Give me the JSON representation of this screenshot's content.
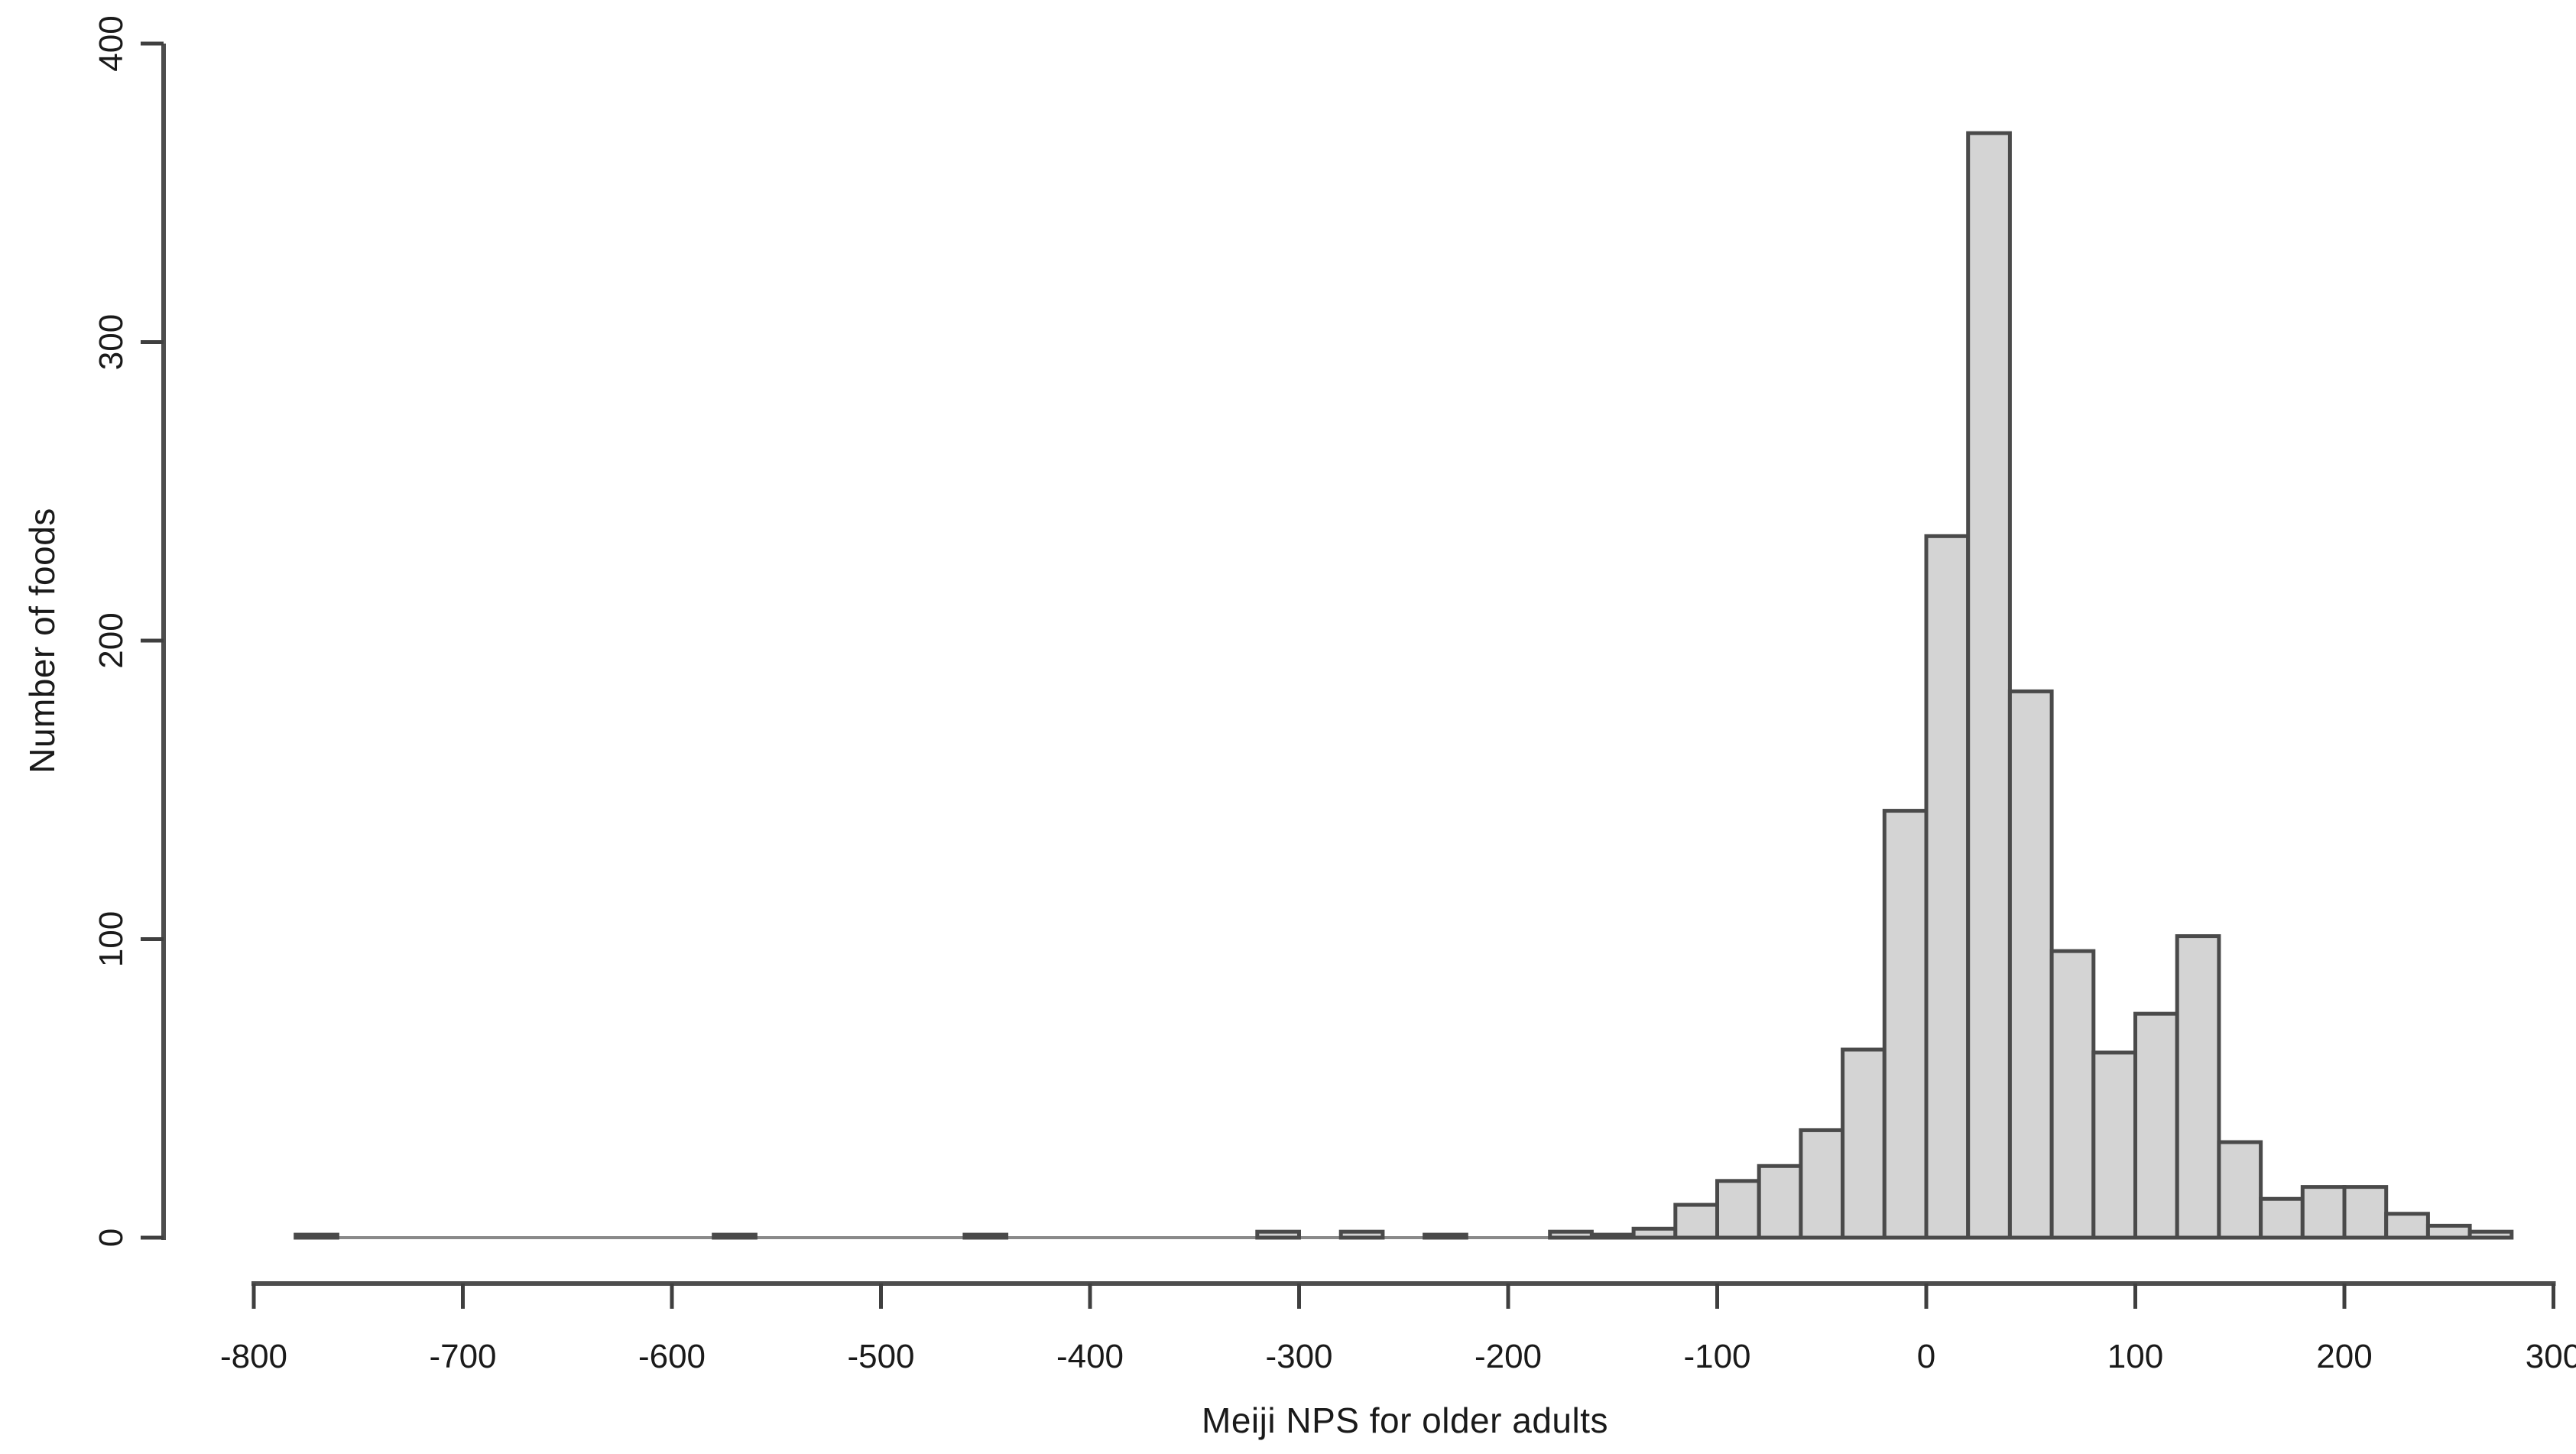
{
  "chart_data": {
    "type": "bar",
    "subtype": "histogram",
    "title": "",
    "xlabel": "Meiji NPS for older adults",
    "ylabel": "Number of foods",
    "xlim": [
      -843,
      311
    ],
    "ylim": [
      0,
      400
    ],
    "grid": false,
    "legend": "none",
    "bin_width": 20,
    "bin_left_edges": [
      -780,
      -580,
      -460,
      -320,
      -280,
      -240,
      -180,
      -160,
      -140,
      -120,
      -100,
      -80,
      -60,
      -40,
      -20,
      0,
      20,
      40,
      60,
      80,
      100,
      120,
      140,
      160,
      180,
      200,
      220,
      240,
      260
    ],
    "counts": [
      1,
      1,
      1,
      2,
      2,
      1,
      2,
      1,
      3,
      11,
      19,
      24,
      36,
      63,
      143,
      235,
      370,
      183,
      96,
      62,
      75,
      101,
      32,
      13,
      17,
      17,
      8,
      4,
      2
    ],
    "baseline_extent": [
      -780,
      280
    ],
    "x_ticks": [
      -800,
      -700,
      -600,
      -500,
      -400,
      -300,
      -200,
      -100,
      0,
      100,
      200,
      300
    ],
    "x_tick_labels": [
      "-800",
      "-700",
      "-600",
      "-500",
      "-400",
      "-300",
      "-200",
      "-100",
      "0",
      "100",
      "200",
      "300"
    ],
    "y_ticks": [
      0,
      100,
      200,
      300,
      400
    ],
    "y_tick_labels": [
      "0",
      "100",
      "200",
      "300",
      "400"
    ],
    "colors": {
      "background": "#ffffff",
      "bar_fill": "#d4d4d4",
      "bar_border": "#4a4a4a",
      "axis_line": "#4d4d4d",
      "tick_mark": "#3f3f3f",
      "zero_baseline": "#8a8a8a",
      "tick_text": "#1a1a1a"
    }
  }
}
